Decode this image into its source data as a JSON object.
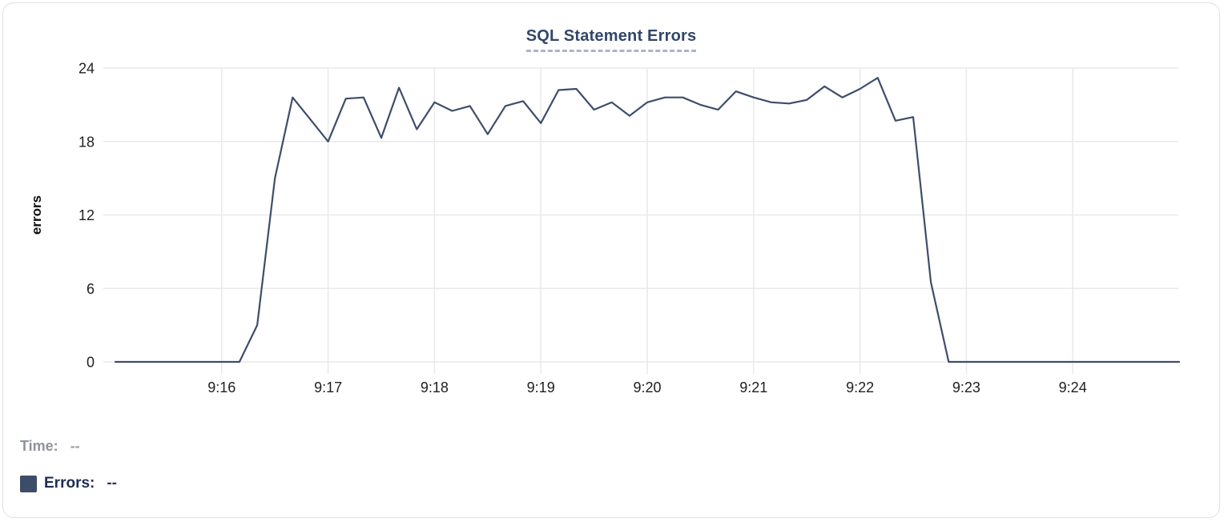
{
  "chart_data": {
    "type": "line",
    "title": "SQL Statement Errors",
    "xlabel": "",
    "ylabel": "errors",
    "x_tick_labels": [
      "9:16",
      "9:17",
      "9:18",
      "9:19",
      "9:20",
      "9:21",
      "9:22",
      "9:23",
      "9:24"
    ],
    "y_ticks": [
      0,
      6,
      12,
      18,
      24
    ],
    "ylim": [
      0,
      24
    ],
    "x_start_time": "9:15:00",
    "x_end_time": "9:25:00",
    "interval_seconds": 10,
    "grid": "on",
    "series": [
      {
        "name": "Errors",
        "color": "#3e4d6b",
        "values": [
          0,
          0,
          0,
          0,
          0,
          0,
          0,
          0,
          3,
          15,
          21.6,
          19.8,
          18,
          21.5,
          21.6,
          18.3,
          22.4,
          19,
          21.2,
          20.5,
          20.9,
          18.6,
          20.9,
          21.3,
          19.5,
          22.2,
          22.3,
          20.6,
          21.2,
          20.1,
          21.2,
          21.6,
          21.6,
          21,
          20.6,
          22.1,
          21.6,
          21.2,
          21.1,
          21.4,
          22.5,
          21.6,
          22.3,
          23.2,
          19.7,
          20,
          6.5,
          0,
          0,
          0,
          0,
          0,
          0,
          0,
          0,
          0,
          0,
          0,
          0,
          0,
          0
        ]
      }
    ],
    "colors": {
      "grid": "#e9e9e9",
      "tick_label": "#212121",
      "axis_title": "#111111",
      "title": "#33466b",
      "title_underline": "#a9b4c9"
    }
  },
  "readout": {
    "time_label": "Time:",
    "time_value": "--",
    "errors_label": "Errors:",
    "errors_value": "--",
    "swatch_color": "#3d4c68"
  }
}
